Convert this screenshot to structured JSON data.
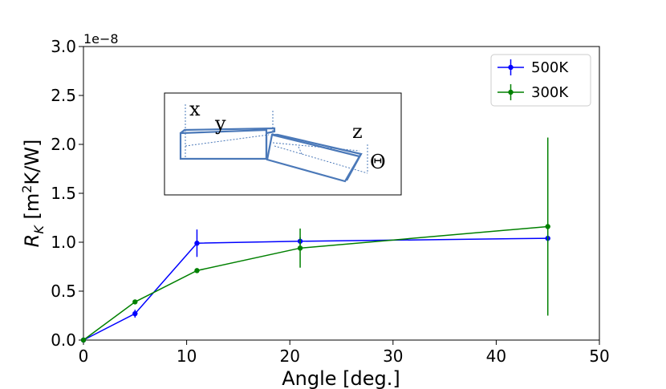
{
  "chart_data": {
    "type": "line",
    "xlabel": "Angle [deg.]",
    "ylabel_main": "R",
    "ylabel_sub": "K",
    "ylabel_unit_pre": " [m",
    "ylabel_unit_sup": "2",
    "ylabel_unit_post": "K/W]",
    "y_offset_text": "1e−8",
    "xlim": [
      0,
      50
    ],
    "ylim": [
      0,
      3.0
    ],
    "x_ticks": [
      0,
      10,
      20,
      30,
      40,
      50
    ],
    "x_tick_labels": [
      "0",
      "10",
      "20",
      "30",
      "40",
      "50"
    ],
    "y_ticks": [
      0,
      0.5,
      1.0,
      1.5,
      2.0,
      2.5,
      3.0
    ],
    "y_tick_labels": [
      "0.0",
      "0.5",
      "1.0",
      "1.5",
      "2.0",
      "2.5",
      "3.0"
    ],
    "grid": false,
    "legend_position": "top-right",
    "series": [
      {
        "name": "500K",
        "color": "#0000ff",
        "x": [
          0,
          5,
          11,
          21,
          45
        ],
        "y": [
          0,
          0.27,
          0.99,
          1.01,
          1.04
        ],
        "yerr": [
          0,
          0.04,
          0.14,
          0.04,
          0.04
        ]
      },
      {
        "name": "300K",
        "color": "#008000",
        "x": [
          0,
          5,
          11,
          21,
          45
        ],
        "y": [
          0,
          0.39,
          0.71,
          0.94,
          1.16
        ],
        "yerr": [
          0,
          0.0,
          0.0,
          0.2,
          0.91
        ]
      }
    ],
    "inset_labels": {
      "x": "x",
      "y": "y",
      "z": "z",
      "theta": "Θ"
    }
  }
}
